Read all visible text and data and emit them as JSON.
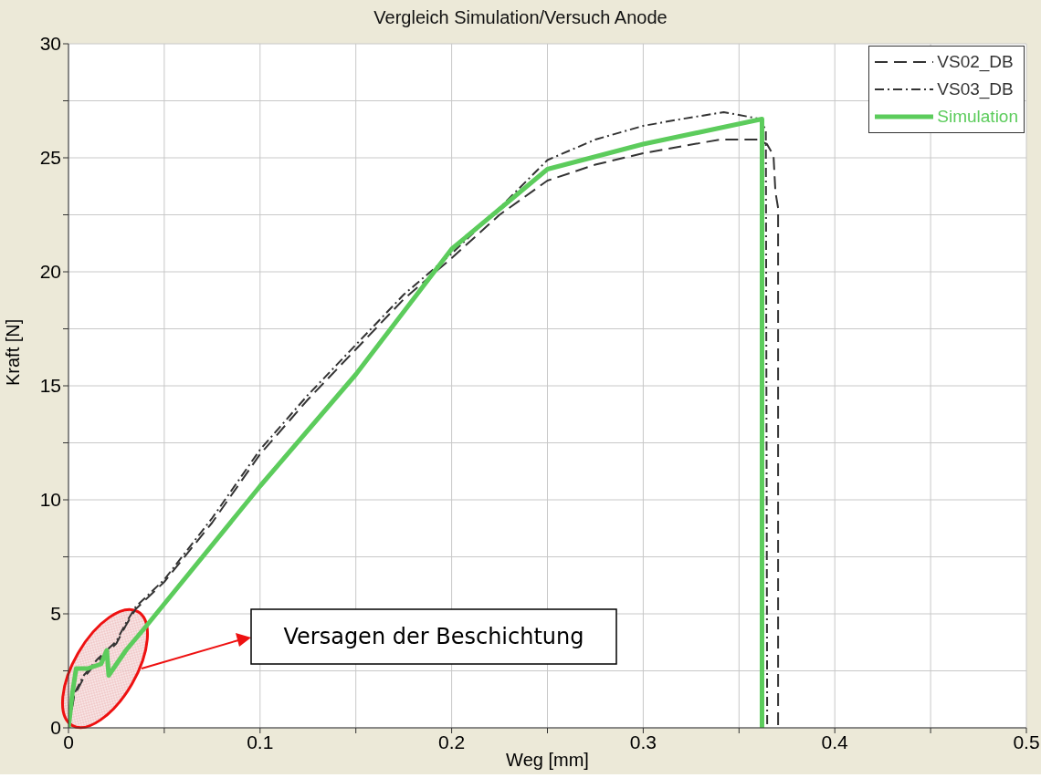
{
  "chart_data": {
    "type": "line",
    "title": "Vergleich Simulation/Versuch Anode",
    "xlabel": "Weg [mm]",
    "ylabel": "Kraft [N]",
    "xlim": [
      0,
      0.5
    ],
    "ylim": [
      0,
      30
    ],
    "xticks": [
      0,
      {
        "value": 0.05,
        "label": null
      },
      0.1,
      {
        "value": 0.15,
        "label": null
      },
      0.2,
      {
        "value": 0.25,
        "label": null
      },
      0.3,
      {
        "value": 0.35,
        "label": null
      },
      0.4,
      {
        "value": 0.45,
        "label": null
      },
      0.5
    ],
    "yticks": [
      0,
      {
        "value": 2.5,
        "label": null
      },
      5,
      {
        "value": 7.5,
        "label": null
      },
      10,
      {
        "value": 12.5,
        "label": null
      },
      15,
      {
        "value": 17.5,
        "label": null
      },
      20,
      {
        "value": 22.5,
        "label": null
      },
      25,
      {
        "value": 27.5,
        "label": null
      },
      30
    ],
    "grid": true,
    "legend": "top right",
    "marker": "none",
    "series": [
      {
        "name": "VS02_DB",
        "color": "#333333",
        "line_style": "dashed",
        "x": [
          0,
          0.003,
          0.008,
          0.015,
          0.02,
          0.025,
          0.03,
          0.035,
          0.05,
          0.075,
          0.1,
          0.125,
          0.15,
          0.175,
          0.2,
          0.225,
          0.25,
          0.275,
          0.3,
          0.32,
          0.34,
          0.36,
          0.3646,
          0.368,
          0.369,
          0.3704,
          0.3704
        ],
        "values": [
          0,
          1.4,
          2.2,
          2.9,
          3.3,
          3.7,
          4.5,
          5.2,
          6.4,
          9.0,
          12.0,
          14.4,
          16.6,
          18.8,
          20.6,
          22.5,
          24.0,
          24.7,
          25.2,
          25.5,
          25.8,
          25.8,
          25.6,
          25.1,
          23.5,
          22.8,
          0
        ]
      },
      {
        "name": "VS03_DB",
        "color": "#333333",
        "line_style": "dashdot",
        "x": [
          0,
          0.003,
          0.008,
          0.015,
          0.02,
          0.025,
          0.03,
          0.035,
          0.05,
          0.075,
          0.1,
          0.125,
          0.15,
          0.175,
          0.2,
          0.225,
          0.25,
          0.275,
          0.3,
          0.32,
          0.342,
          0.355,
          0.361,
          0.364,
          0.3647
        ],
        "values": [
          0,
          1.5,
          2.3,
          3.0,
          3.4,
          3.8,
          4.6,
          5.3,
          6.5,
          9.2,
          12.2,
          14.6,
          16.8,
          19.0,
          20.8,
          22.8,
          24.9,
          25.8,
          26.4,
          26.7,
          27.0,
          26.8,
          26.7,
          26.2,
          0
        ]
      },
      {
        "name": "Simulation",
        "color": "#5ccc5c",
        "line_style": "solid",
        "x": [
          0,
          0.002,
          0.004,
          0.01,
          0.017,
          0.02,
          0.021,
          0.03,
          0.039,
          0.1,
          0.15,
          0.2,
          0.25,
          0.3,
          0.362,
          0.362
        ],
        "values": [
          0,
          1.5,
          2.6,
          2.6,
          2.8,
          3.4,
          2.3,
          3.4,
          4.3,
          10.6,
          15.5,
          21,
          24.5,
          25.6,
          26.7,
          0
        ]
      }
    ],
    "annotations": [
      "Versagen der Beschichtung"
    ]
  }
}
